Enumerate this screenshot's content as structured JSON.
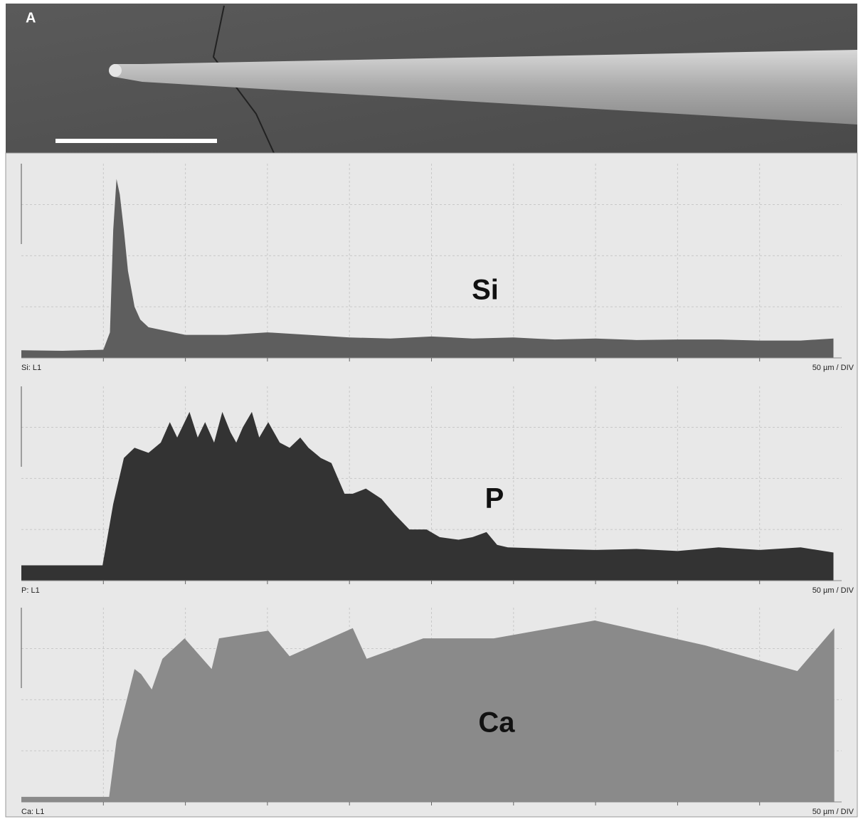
{
  "panel_label": "A",
  "chart_data": [
    {
      "type": "area",
      "title": "Si",
      "footer_left": "Si: L1",
      "footer_right": "50 µm / DIV",
      "color": "#5e5e5e",
      "x": [
        0,
        0.5,
        1.0,
        1.08,
        1.12,
        1.16,
        1.2,
        1.25,
        1.3,
        1.38,
        1.45,
        1.55,
        1.7,
        2.0,
        2.5,
        3.0,
        3.5,
        4.0,
        4.5,
        5.0,
        5.5,
        6.0,
        6.5,
        7.0,
        7.5,
        8.0,
        8.5,
        9.0,
        9.5,
        9.9
      ],
      "values": [
        0.15,
        0.14,
        0.16,
        0.5,
        2.5,
        3.5,
        3.2,
        2.5,
        1.7,
        1.0,
        0.75,
        0.6,
        0.55,
        0.45,
        0.45,
        0.5,
        0.45,
        0.4,
        0.38,
        0.42,
        0.38,
        0.4,
        0.36,
        0.38,
        0.35,
        0.36,
        0.36,
        0.34,
        0.34,
        0.38
      ],
      "xlim": [
        0,
        10
      ],
      "ylim": [
        0,
        3.8
      ],
      "xticks": [
        1,
        2,
        3,
        4,
        5,
        6,
        7,
        8,
        9
      ],
      "yticks": [
        1,
        2,
        3
      ],
      "grid": true
    },
    {
      "type": "area",
      "title": "P",
      "footer_left": "P: L1",
      "footer_right": "50 µm / DIV",
      "color": "#333333",
      "x": [
        0,
        0.5,
        0.99,
        1.12,
        1.25,
        1.38,
        1.55,
        1.7,
        1.81,
        1.9,
        2.05,
        2.15,
        2.24,
        2.35,
        2.45,
        2.55,
        2.62,
        2.7,
        2.81,
        2.9,
        3.01,
        3.15,
        3.27,
        3.4,
        3.5,
        3.65,
        3.78,
        3.94,
        4.04,
        4.2,
        4.39,
        4.55,
        4.73,
        4.94,
        5.1,
        5.33,
        5.5,
        5.67,
        5.8,
        5.93,
        6.5,
        7.0,
        7.5,
        8.0,
        8.5,
        9.0,
        9.5,
        9.9
      ],
      "values": [
        0.3,
        0.3,
        0.3,
        1.5,
        2.4,
        2.6,
        2.5,
        2.7,
        3.1,
        2.8,
        3.3,
        2.8,
        3.1,
        2.7,
        3.3,
        2.9,
        2.7,
        3.0,
        3.3,
        2.8,
        3.1,
        2.7,
        2.6,
        2.8,
        2.6,
        2.4,
        2.3,
        1.7,
        1.7,
        1.8,
        1.6,
        1.3,
        1.0,
        1.0,
        0.85,
        0.8,
        0.85,
        0.95,
        0.7,
        0.65,
        0.62,
        0.6,
        0.62,
        0.58,
        0.65,
        0.6,
        0.65,
        0.55
      ],
      "xlim": [
        0,
        10
      ],
      "ylim": [
        0,
        3.8
      ],
      "xticks": [
        1,
        2,
        3,
        4,
        5,
        6,
        7,
        8,
        9
      ],
      "yticks": [
        1,
        2,
        3
      ],
      "grid": true
    },
    {
      "type": "area",
      "title": "Ca",
      "footer_left": "Ca: L1",
      "footer_right": "50 µm / DIV",
      "color": "#8a8a8a",
      "x": [
        0,
        0.5,
        1.07,
        1.16,
        1.38,
        1.46,
        1.59,
        1.72,
        1.99,
        2.32,
        2.41,
        3.01,
        3.27,
        4.04,
        4.21,
        4.9,
        5.76,
        6.99,
        8.34,
        9.46,
        9.91
      ],
      "values": [
        0.1,
        0.1,
        0.1,
        1.2,
        2.6,
        2.5,
        2.2,
        2.8,
        3.2,
        2.6,
        3.2,
        3.35,
        2.85,
        3.4,
        2.8,
        3.2,
        3.2,
        3.55,
        3.06,
        2.56,
        3.4
      ],
      "xlim": [
        0,
        10
      ],
      "ylim": [
        0,
        3.8
      ],
      "xticks": [
        1,
        2,
        3,
        4,
        5,
        6,
        7,
        8,
        9
      ],
      "yticks": [
        1,
        2,
        3
      ],
      "grid": true
    }
  ]
}
